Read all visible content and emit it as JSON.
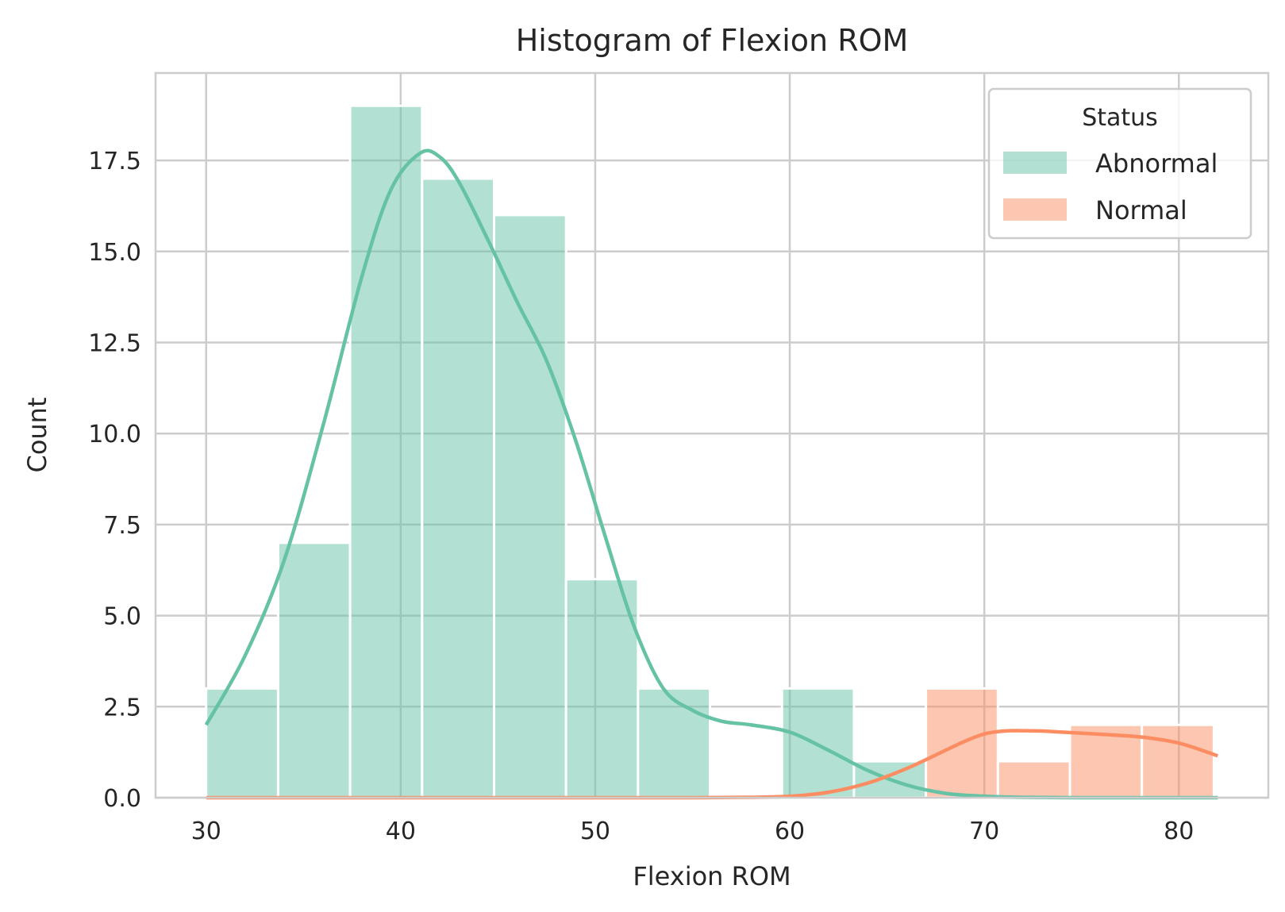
{
  "chart_data": {
    "type": "bar",
    "title": "Histogram of Flexion ROM",
    "xlabel": "Flexion ROM",
    "ylabel": "Count",
    "xlim": [
      27.4,
      84.6
    ],
    "ylim": [
      0,
      19.9
    ],
    "xticks": [
      30,
      40,
      50,
      60,
      70,
      80
    ],
    "xtick_labels": [
      "30",
      "40",
      "50",
      "60",
      "70",
      "80"
    ],
    "yticks": [
      0,
      2.5,
      5,
      7.5,
      10,
      12.5,
      15,
      17.5
    ],
    "ytick_labels": [
      "0.0",
      "2.5",
      "5.0",
      "7.5",
      "10.0",
      "12.5",
      "15.0",
      "17.5"
    ],
    "grid": true,
    "legend": {
      "title": "Status",
      "placement": "top-right",
      "entries": [
        {
          "label": "Abnormal",
          "color": "#66c2a5"
        },
        {
          "label": "Normal",
          "color": "#fc8d62"
        }
      ]
    },
    "bin_edges": [
      30.0,
      33.7,
      37.4,
      41.1,
      44.8,
      48.5,
      52.2,
      55.9,
      59.6,
      63.3,
      67.0,
      70.7,
      74.4,
      78.1,
      81.8
    ],
    "series": [
      {
        "name": "Abnormal",
        "color": "#66c2a5",
        "counts": [
          3,
          7,
          19,
          17,
          16,
          6,
          3,
          0,
          3,
          1,
          0,
          0,
          0,
          0
        ],
        "kde": {
          "x": [
            30,
            32,
            34,
            36,
            38,
            39.5,
            41,
            42,
            43,
            44.5,
            46,
            47.5,
            49,
            50.5,
            52,
            53.5,
            55,
            56.5,
            58,
            60,
            62,
            64,
            66,
            68,
            70,
            72,
            75,
            78,
            82
          ],
          "y": [
            2.0,
            3.9,
            6.5,
            10.2,
            14.3,
            16.7,
            17.7,
            17.6,
            16.9,
            15.3,
            13.6,
            12.0,
            9.8,
            7.2,
            4.7,
            3.0,
            2.4,
            2.1,
            2.0,
            1.8,
            1.3,
            0.75,
            0.35,
            0.12,
            0.04,
            0.01,
            0.0,
            0.0,
            0.0
          ]
        }
      },
      {
        "name": "Normal",
        "color": "#fc8d62",
        "counts": [
          0,
          0,
          0,
          0,
          0,
          0,
          0,
          0,
          0,
          0,
          3,
          1,
          2,
          2
        ],
        "kde": {
          "x": [
            30,
            40,
            50,
            55,
            58,
            60,
            62,
            64,
            66,
            68,
            69,
            70,
            71,
            72,
            73,
            74,
            76,
            78,
            80,
            82
          ],
          "y": [
            0.0,
            0.0,
            0.0,
            0.0,
            0.01,
            0.04,
            0.15,
            0.4,
            0.8,
            1.3,
            1.55,
            1.75,
            1.83,
            1.84,
            1.83,
            1.8,
            1.74,
            1.67,
            1.5,
            1.15
          ]
        }
      }
    ]
  }
}
